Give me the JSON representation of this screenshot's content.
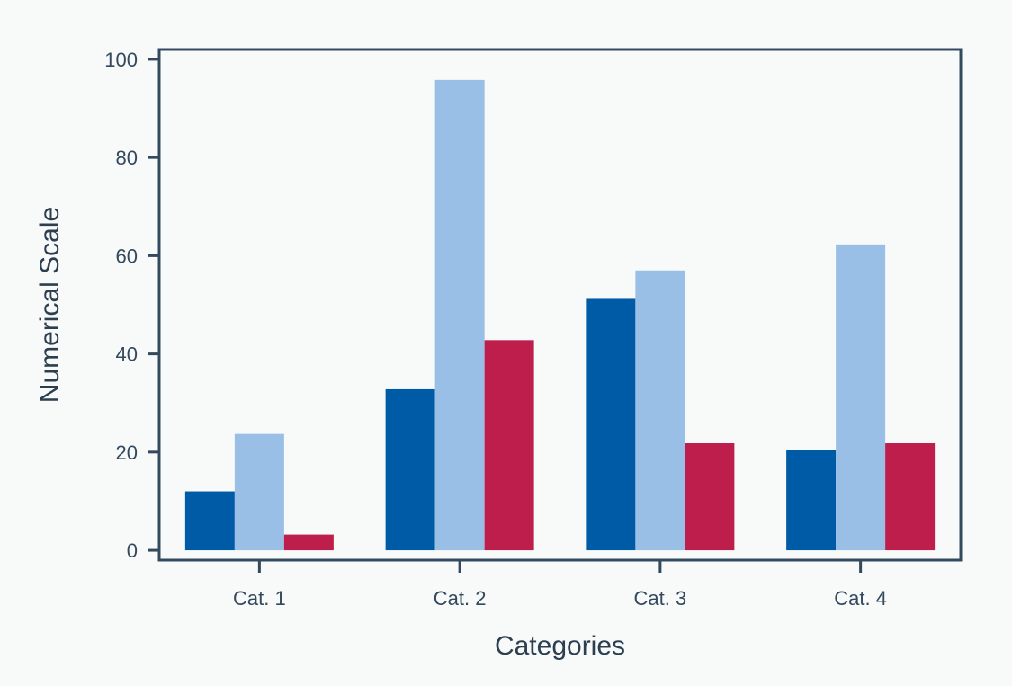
{
  "chart_data": {
    "type": "bar",
    "title": "",
    "xlabel": "Categories",
    "ylabel": "Numerical Scale",
    "categories": [
      "Cat. 1",
      "Cat. 2",
      "Cat. 3",
      "Cat. 4"
    ],
    "series": [
      {
        "values": [
          12,
          32.8,
          51.2,
          20.5
        ]
      },
      {
        "values": [
          23.7,
          95.8,
          57,
          62.3
        ]
      },
      {
        "values": [
          3.2,
          42.8,
          21.8,
          21.8
        ]
      }
    ],
    "ylim": [
      -2,
      102
    ],
    "yticks": [
      0,
      20,
      40,
      60,
      80,
      100
    ],
    "grid": false,
    "legend": "none",
    "colors": {
      "series": [
        "#005ba6",
        "#99bfe6",
        "#be1e4b"
      ],
      "axis": "#34495e",
      "background": "#f8fafa"
    }
  }
}
